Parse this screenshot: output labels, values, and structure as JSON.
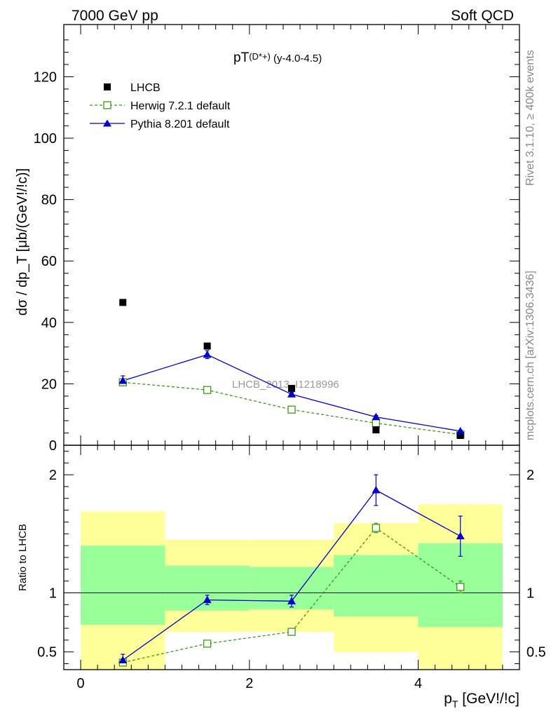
{
  "header": {
    "left": "7000 GeV pp",
    "right": "Soft QCD"
  },
  "side_texts": {
    "rivet": "Rivet 3.1.10, ≥ 400k events",
    "mcplots": "mcplots.cern.ch [arXiv:1306.3436]"
  },
  "chart_data": [
    {
      "type": "scatter",
      "panel": "main",
      "title_main": "pT",
      "title_sub": "(D*+)",
      "title_tail": " (y-4.0-4.5)",
      "ylabel": "dσ / dp_T [μb/(GeV!/!c)]",
      "watermark": "LHCB_2013_I1218996",
      "xlim": [
        -0.2,
        5.2
      ],
      "ylim": [
        0,
        137
      ],
      "yticks": [
        0,
        20,
        40,
        60,
        80,
        100,
        120
      ],
      "ytick_labels": [
        "0",
        "20",
        "40",
        "60",
        "80",
        "100",
        "120"
      ],
      "legend_position": "top-left",
      "x": [
        0.5,
        1.5,
        2.5,
        3.5,
        4.5
      ],
      "series": [
        {
          "name": "LHCB",
          "style": "data",
          "color": "#000000",
          "values": [
            46.5,
            32.3,
            18.5,
            5.0,
            3.2
          ]
        },
        {
          "name": "Herwig 7.2.1 default",
          "style": "dashed-open-square",
          "color": "#3a9b1a",
          "values": [
            20.5,
            18.0,
            11.6,
            7.2,
            3.5
          ],
          "errors": [
            0.4,
            0.3,
            0.3,
            0.2,
            0.2
          ]
        },
        {
          "name": "Pythia 8.201 default",
          "style": "solid-triangle",
          "color": "#0000cc",
          "values": [
            21.0,
            29.5,
            16.6,
            9.2,
            4.6
          ],
          "errors": [
            1.6,
            1.3,
            0.6,
            0.5,
            0.3
          ]
        }
      ]
    },
    {
      "type": "scatter",
      "panel": "ratio",
      "ylabel": "Ratio to LHCB",
      "xlabel_main": "p",
      "xlabel_sub": "T",
      "xlabel_tail": " [GeV!/!c]",
      "xlim": [
        -0.2,
        5.2
      ],
      "ylim": [
        0.35,
        2.25
      ],
      "xticks": [
        0,
        2,
        4
      ],
      "xtick_labels": [
        "0",
        "2",
        "4"
      ],
      "yticks": [
        0.5,
        1,
        2
      ],
      "ytick_labels": [
        "0.5",
        "1",
        "2"
      ],
      "bins": [
        [
          0,
          1
        ],
        [
          1,
          2
        ],
        [
          2,
          3
        ],
        [
          3,
          4
        ],
        [
          4,
          5
        ]
      ],
      "band_yellow": [
        [
          0.33,
          1.69
        ],
        [
          0.67,
          1.45
        ],
        [
          0.67,
          1.45
        ],
        [
          0.5,
          1.59
        ],
        [
          0.33,
          1.75
        ]
      ],
      "band_green": [
        [
          0.73,
          1.4
        ],
        [
          0.85,
          1.23
        ],
        [
          0.86,
          1.22
        ],
        [
          0.8,
          1.32
        ],
        [
          0.71,
          1.42
        ]
      ],
      "x": [
        0.5,
        1.5,
        2.5,
        3.5,
        4.5
      ],
      "series": [
        {
          "name": "Herwig 7.2.1 default",
          "color": "#3a9b1a",
          "values": [
            0.41,
            0.57,
            0.67,
            1.55,
            1.05
          ],
          "errors": [
            0.015,
            0.01,
            0.01,
            0.04,
            0.05
          ]
        },
        {
          "name": "Pythia 8.201 default",
          "color": "#0000cc",
          "values": [
            0.43,
            0.94,
            0.93,
            1.87,
            1.48
          ],
          "errors": [
            0.05,
            0.04,
            0.05,
            0.13,
            0.17
          ]
        }
      ]
    }
  ]
}
